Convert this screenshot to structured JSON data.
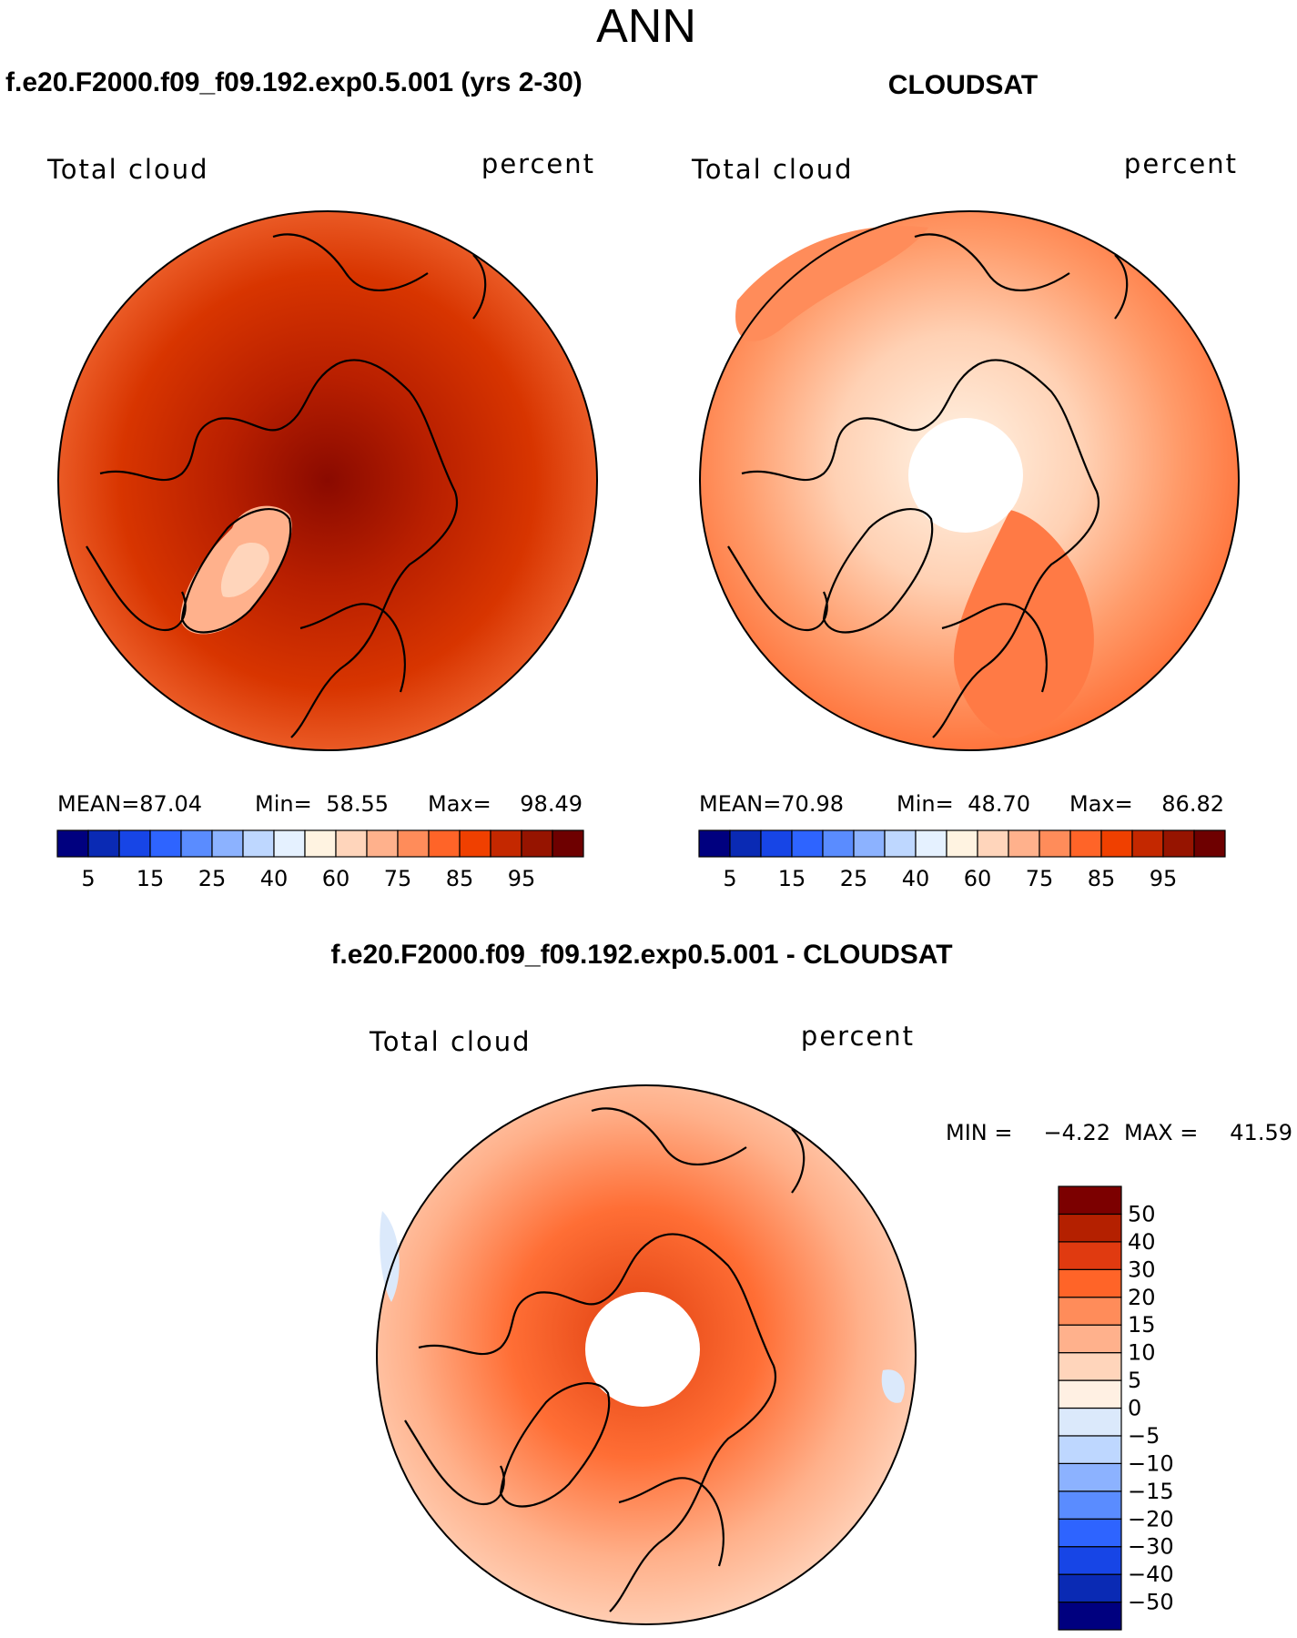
{
  "page_title": "ANN",
  "panels": [
    {
      "header": "f.e20.F2000.f09_f09.192.exp0.5.001 (yrs 2-30)",
      "left_label": "Total cloud",
      "right_label": "percent",
      "stats": {
        "mean_label": "MEAN=",
        "mean_value": "87.04",
        "min_label": "Min=",
        "min_value": "58.55",
        "max_label": "Max=",
        "max_value": "98.49"
      }
    },
    {
      "header": "CLOUDSAT",
      "left_label": "Total cloud",
      "right_label": "percent",
      "stats": {
        "mean_label": "MEAN=",
        "mean_value": "70.98",
        "min_label": "Min=",
        "min_value": "48.70",
        "max_label": "Max=",
        "max_value": "86.82"
      }
    }
  ],
  "difference_panel": {
    "header": "f.e20.F2000.f09_f09.192.exp0.5.001 - CLOUDSAT",
    "left_label": "Total cloud",
    "right_label": "percent",
    "minmax": {
      "min_label": "MIN =",
      "min_value": "−4.22",
      "max_label": "MAX =",
      "max_value": "41.59"
    }
  },
  "colorbar_abs": {
    "colors": [
      "#00007f",
      "#0a2ab4",
      "#1745e6",
      "#2e64ff",
      "#5a8cff",
      "#8cb2ff",
      "#bed7ff",
      "#e5f1ff",
      "#fff3e1",
      "#ffd5bb",
      "#ffb18c",
      "#ff8c5a",
      "#ff6428",
      "#f04000",
      "#c42800",
      "#961400",
      "#6e0000"
    ],
    "tick_labels": [
      "5",
      "15",
      "25",
      "40",
      "60",
      "75",
      "85",
      "95"
    ]
  },
  "colorbar_diff": {
    "colors": [
      "#00007f",
      "#0a2ab4",
      "#1745e6",
      "#2e64ff",
      "#5a8cff",
      "#8cb2ff",
      "#bed7ff",
      "#dbe9fb",
      "#fff0e3",
      "#ffd5bb",
      "#ffb18c",
      "#ff8c5a",
      "#ff6428",
      "#e03a10",
      "#b42000",
      "#7c0000"
    ],
    "tick_labels": [
      "50",
      "40",
      "30",
      "20",
      "15",
      "10",
      "5",
      "0",
      "−5",
      "−10",
      "−15",
      "−20",
      "−30",
      "−40",
      "−50"
    ]
  },
  "colors": {
    "polar_hole": "#ffffff",
    "coastline": "#000000",
    "frame": "#000000"
  }
}
